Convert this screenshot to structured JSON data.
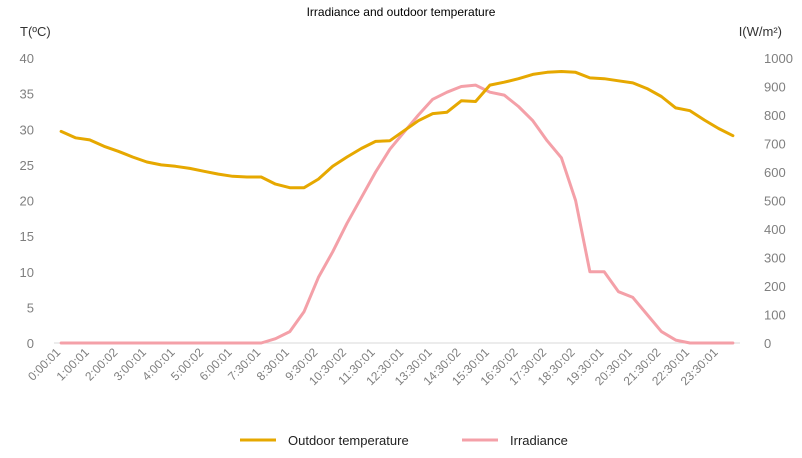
{
  "chart_data": {
    "type": "line",
    "title": "Irradiance and outdoor temperature",
    "ylabel_left": "T(ºC)",
    "ylabel_right": "I(W/m²)",
    "ylim_left": [
      0,
      40
    ],
    "ylim_right": [
      0,
      1000
    ],
    "yticks_left": [
      "0",
      "5",
      "10",
      "15",
      "20",
      "25",
      "30",
      "35",
      "40"
    ],
    "yticks_right": [
      "0",
      "100",
      "200",
      "300",
      "400",
      "500",
      "600",
      "700",
      "800",
      "900",
      "1000"
    ],
    "x_labels": [
      "0:00:01",
      "1:00:01",
      "2:00:02",
      "3:00:01",
      "4:00:01",
      "5:00:02",
      "6:00:01",
      "7:30:01",
      "8:30:01",
      "9:30:02",
      "10:30:02",
      "11:30:01",
      "12:30:01",
      "13:30:01",
      "14:30:02",
      "15:30:01",
      "16:30:02",
      "17:30:02",
      "18:30:02",
      "19:30:01",
      "20:30:01",
      "21:30:02",
      "22:30:01",
      "23:30:01"
    ],
    "grid": false,
    "legend_position": "bottom",
    "series": [
      {
        "name": "Outdoor temperature",
        "axis": "left",
        "color": "#e6a800",
        "values": [
          29.7,
          28.8,
          28.5,
          27.6,
          26.9,
          26.1,
          25.4,
          25.0,
          24.8,
          24.5,
          24.1,
          23.7,
          23.4,
          23.3,
          23.3,
          22.3,
          21.8,
          21.8,
          23.0,
          24.8,
          26.1,
          27.3,
          28.3,
          28.4,
          29.8,
          31.2,
          32.2,
          32.4,
          34.0,
          33.9,
          36.2,
          36.6,
          37.1,
          37.7,
          38.0,
          38.1,
          38.0,
          37.2,
          37.1,
          36.8,
          36.5,
          35.7,
          34.6,
          33.0,
          32.6,
          31.3,
          30.1,
          29.1
        ]
      },
      {
        "name": "Irradiance",
        "axis": "right",
        "color": "#f4a0a8",
        "values": [
          0,
          0,
          0,
          0,
          0,
          0,
          0,
          0,
          0,
          0,
          0,
          0,
          0,
          0,
          0,
          15,
          40,
          110,
          230,
          320,
          420,
          510,
          600,
          680,
          740,
          800,
          855,
          880,
          900,
          905,
          880,
          870,
          830,
          780,
          710,
          650,
          500,
          250,
          250,
          180,
          160,
          100,
          40,
          10,
          0,
          0,
          0,
          0
        ]
      }
    ]
  }
}
